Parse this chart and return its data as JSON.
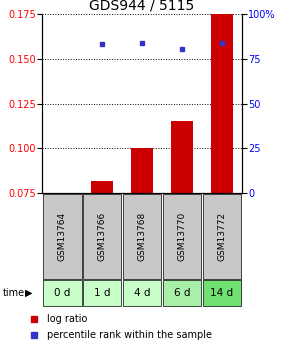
{
  "title": "GDS944 / 5115",
  "samples": [
    "GSM13764",
    "GSM13766",
    "GSM13768",
    "GSM13770",
    "GSM13772"
  ],
  "timepoints": [
    "0 d",
    "1 d",
    "4 d",
    "6 d",
    "14 d"
  ],
  "log_ratio": [
    0.0,
    0.082,
    0.1,
    0.115,
    0.175
  ],
  "percentile_rank": [
    null,
    83.0,
    83.5,
    80.5,
    84.0
  ],
  "ylim_left": [
    0.075,
    0.175
  ],
  "ylim_right": [
    0,
    100
  ],
  "yticks_left": [
    0.075,
    0.1,
    0.125,
    0.15,
    0.175
  ],
  "yticks_right": [
    0,
    25,
    50,
    75,
    100
  ],
  "bar_color": "#cc0000",
  "dot_color": "#3333cc",
  "grid_color": "#000000",
  "sample_bg_color": "#c8c8c8",
  "time_bg_colors": [
    "#c8ffc8",
    "#c8ffc8",
    "#c8ffc8",
    "#a8f0a8",
    "#70e070"
  ],
  "legend_bar_label": "log ratio",
  "legend_dot_label": "percentile rank within the sample",
  "time_label": "time",
  "title_fontsize": 10,
  "tick_fontsize": 7,
  "sample_fontsize": 6.5,
  "time_fontsize": 7.5
}
